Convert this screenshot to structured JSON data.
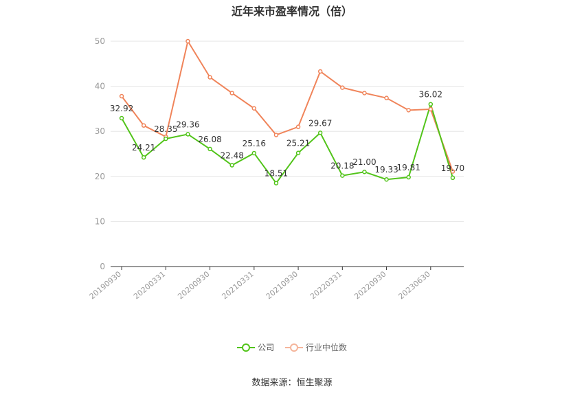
{
  "title": "近年来市盈率情况（倍）",
  "source": "数据来源：恒生聚源",
  "colors": {
    "company": "#52c41a",
    "industry": "#f0845a",
    "grid": "#e6e6e6",
    "axis": "#333333",
    "tick": "#999999"
  },
  "chart_data": {
    "type": "line",
    "title": "近年来市盈率情况（倍）",
    "xlabel": "",
    "ylabel": "",
    "ylim": [
      0,
      50
    ],
    "yticks": [
      0,
      10,
      20,
      30,
      40,
      50
    ],
    "grid": true,
    "legend_position": "bottom",
    "x": [
      "20190930",
      "20191231",
      "20200331",
      "20200630",
      "20200930",
      "20201231",
      "20210331",
      "20210630",
      "20210930",
      "20211231",
      "20220331",
      "20220630",
      "20220930",
      "20221231",
      "20230630",
      "20230930"
    ],
    "x_tick_labels": [
      "20190930",
      "20200331",
      "20200930",
      "20210331",
      "20210930",
      "20220331",
      "20220930",
      "20230630"
    ],
    "series": [
      {
        "name": "公司",
        "values": [
          32.92,
          24.21,
          28.35,
          29.36,
          26.08,
          22.48,
          25.16,
          18.51,
          25.21,
          29.67,
          20.18,
          21.0,
          19.33,
          19.81,
          36.02,
          19.7
        ]
      },
      {
        "name": "行业中位数",
        "values": [
          37.8,
          31.3,
          28.8,
          50.0,
          42.0,
          38.5,
          35.1,
          29.2,
          31.0,
          43.3,
          39.7,
          38.5,
          37.4,
          34.7,
          34.9,
          21.1
        ]
      }
    ]
  }
}
